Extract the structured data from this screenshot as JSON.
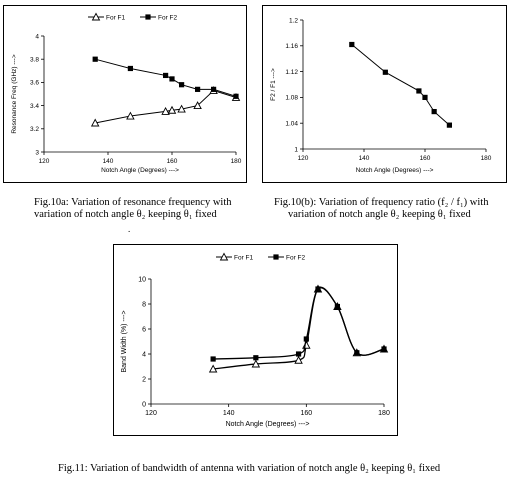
{
  "chart_data": [
    {
      "type": "line",
      "xlabel": "Notch Angle (Degrees) --->",
      "ylabel": "Resonance Freq (GHz) --->",
      "xlim": [
        120,
        180
      ],
      "ylim": [
        3,
        4
      ],
      "xticks": [
        120,
        140,
        160,
        180
      ],
      "yticks": [
        3,
        3.2,
        3.4,
        3.6,
        3.8,
        4
      ],
      "ytick_labels": [
        "3",
        "3.2",
        "3.4",
        "3.6",
        "3.8",
        "4"
      ],
      "grid": false,
      "legend": "top-center",
      "series": [
        {
          "name": "For F1",
          "marker": "triangle",
          "x": [
            136,
            147,
            158,
            160,
            163,
            168,
            173,
            180
          ],
          "y": [
            3.25,
            3.31,
            3.35,
            3.36,
            3.37,
            3.4,
            3.53,
            3.47
          ]
        },
        {
          "name": "For F2",
          "marker": "square",
          "x": [
            136,
            147,
            158,
            160,
            163,
            168,
            173,
            180
          ],
          "y": [
            3.8,
            3.72,
            3.66,
            3.63,
            3.58,
            3.54,
            3.54,
            3.48
          ]
        }
      ]
    },
    {
      "type": "line",
      "xlabel": "Notch Angle (Degrees) --->",
      "ylabel": "F2 / F1 --->",
      "xlim": [
        120,
        180
      ],
      "ylim": [
        1,
        1.2
      ],
      "xticks": [
        120,
        140,
        160,
        180
      ],
      "yticks": [
        1,
        1.04,
        1.08,
        1.12,
        1.16,
        1.2
      ],
      "ytick_labels": [
        "1",
        "1.04",
        "1.08",
        "1.12",
        "1.16",
        "1.2"
      ],
      "grid": false,
      "series": [
        {
          "name": "",
          "marker": "square",
          "x": [
            136,
            147,
            158,
            160,
            163,
            168
          ],
          "y": [
            1.162,
            1.119,
            1.09,
            1.08,
            1.058,
            1.037
          ]
        }
      ]
    },
    {
      "type": "line",
      "xlabel": "Notch Angle (Degrees) --->",
      "ylabel": "Band Width (%) --->",
      "xlim": [
        120,
        180
      ],
      "ylim": [
        0,
        10
      ],
      "xticks": [
        120,
        140,
        160,
        180
      ],
      "yticks": [
        0,
        2,
        4,
        6,
        8,
        10
      ],
      "ytick_labels": [
        "0",
        "2",
        "4",
        "6",
        "8",
        "10"
      ],
      "grid": false,
      "legend": "top-center",
      "series": [
        {
          "name": "For F1",
          "marker": "triangle",
          "x": [
            136,
            147,
            158,
            160,
            163,
            168,
            173,
            180
          ],
          "y": [
            2.8,
            3.2,
            3.5,
            4.7,
            9.2,
            7.8,
            4.1,
            4.4
          ]
        },
        {
          "name": "For F2",
          "marker": "square",
          "x": [
            136,
            147,
            158,
            160,
            163,
            168,
            173,
            180
          ],
          "y": [
            3.6,
            3.7,
            4.0,
            5.2,
            9.2,
            7.8,
            4.1,
            4.4
          ]
        }
      ]
    }
  ],
  "captions": {
    "fig10a_line1": "Fig.10a: Variation of resonance frequency with",
    "fig10a_line2": "variation of notch angle θ₂ keeping θ₁ fixed",
    "fig10b_line1": "Fig.10(b): Variation of frequency ratio (f₂ / f₁) with",
    "fig10b_line2": "variation of notch angle θ₂ keeping θ₁ fixed",
    "fig11": "Fig.11: Variation of bandwidth of antenna with variation of notch angle θ₂ keeping θ₁ fixed"
  },
  "stray_mark": "."
}
